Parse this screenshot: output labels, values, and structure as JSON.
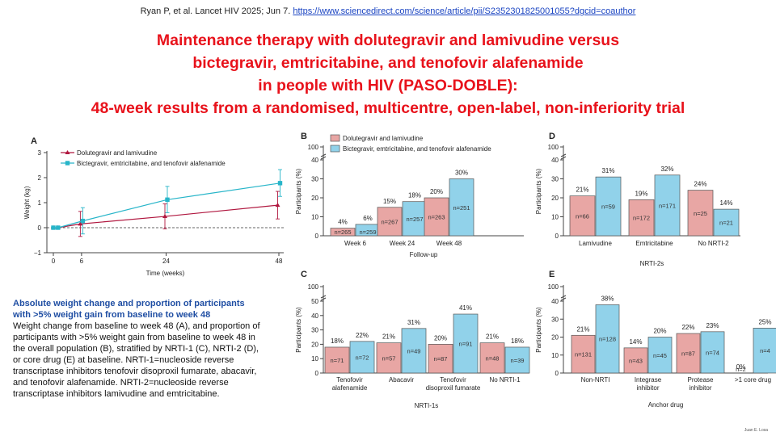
{
  "citation": {
    "prefix": "Ryan P, et al. Lancet HIV 2025; Jun 7.",
    "link": "https://www.sciencedirect.com/science/article/pii/S2352301825001055?dgcid=coauthor"
  },
  "title": {
    "line1": "Maintenance therapy with dolutegravir and lamivudine versus",
    "line2": "bictegravir, emtricitabine, and tenofovir alafenamide",
    "line3": "in people with HIV (PASO-DOBLE):",
    "line4": "48-week results from a randomised, multicentre, open-label, non-inferiority trial"
  },
  "caption": {
    "heading": "Absolute weight change and proportion of participants with >5% weight gain from baseline to week 48",
    "body": "Weight change from baseline to week 48 (A), and proportion of participants with >5% weight gain from baseline to week 48 in the overall population (B), stratified by NRTI-1 (C), NRTI-2 (D), or core drug (E) at baseline. NRTI-1=nucleoside reverse transcriptase inhibitors tenofovir disoproxil fumarate, abacavir, and tenofovir alafenamide. NRTI-2=nucleoside reverse transcriptase inhibitors lamivudine and emtricitabine."
  },
  "author": "Juan E. Losa",
  "colors": {
    "dtg": "#e8a6a4",
    "bic": "#91d2ea",
    "dtg_line": "#b0173f",
    "bic_line": "#27b5c9",
    "edge": "#555555"
  },
  "chart_data": [
    {
      "id": "A",
      "type": "line",
      "panel_label": "A",
      "xlabel": "Time (weeks)",
      "ylabel": "Weight (kg)",
      "x": [
        0,
        1,
        6,
        24,
        48
      ],
      "xticks": [
        0,
        6,
        24,
        48
      ],
      "ylim": [
        -1,
        3
      ],
      "yticks": [
        -1,
        0,
        1,
        2,
        3
      ],
      "reference_line": 0,
      "series": [
        {
          "name": "Dolutegravir and lamivudine",
          "values": [
            0,
            0,
            0.15,
            0.45,
            0.9
          ],
          "lower": [
            0,
            0,
            -0.35,
            -0.05,
            0.35
          ],
          "upper": [
            0,
            0,
            0.65,
            0.95,
            1.45
          ]
        },
        {
          "name": "Bictegravir, emtricitabine, and tenofovir alafenamide",
          "values": [
            0,
            0,
            0.27,
            1.12,
            1.78
          ],
          "lower": [
            0,
            0,
            -0.25,
            0.6,
            1.25
          ],
          "upper": [
            0,
            0,
            0.8,
            1.65,
            2.32
          ]
        }
      ]
    },
    {
      "id": "B",
      "type": "bar",
      "panel_label": "B",
      "xlabel": "Follow-up",
      "ylabel": "Participants (%)",
      "categories": [
        "Week 6",
        "Week 24",
        "Week 48"
      ],
      "ylim": [
        0,
        100
      ],
      "yticks": [
        0,
        10,
        20,
        30,
        40,
        100
      ],
      "legend": [
        "Dolutegravir and lamivudine",
        "Bictegravir, emtricitabine, and tenofovir alafenamide"
      ],
      "series": [
        {
          "name": "Dolutegravir and lamivudine",
          "values": [
            4,
            15,
            20
          ],
          "labels": [
            "4%",
            "15%",
            "20%"
          ],
          "n": [
            "n=265",
            "n=267",
            "n=263"
          ]
        },
        {
          "name": "Bictegravir, emtricitabine, and tenofovir alafenamide",
          "values": [
            6,
            18,
            30
          ],
          "labels": [
            "6%",
            "18%",
            "30%"
          ],
          "n": [
            "n=259",
            "n=257",
            "n=251"
          ]
        }
      ]
    },
    {
      "id": "C",
      "type": "bar",
      "panel_label": "C",
      "xlabel": "NRTI-1s",
      "ylabel": "Participants (%)",
      "categories": [
        "Tenofovir\nalafenamide",
        "Abacavir",
        "Tenofovir\ndisoproxil fumarate",
        "No NRTI-1"
      ],
      "ylim": [
        0,
        100
      ],
      "yticks": [
        0,
        10,
        20,
        30,
        40,
        50,
        100
      ],
      "series": [
        {
          "name": "Dolutegravir and lamivudine",
          "values": [
            18,
            21,
            20,
            21
          ],
          "labels": [
            "18%",
            "21%",
            "20%",
            "21%"
          ],
          "n": [
            "n=71",
            "n=57",
            "n=87",
            "n=48"
          ]
        },
        {
          "name": "Bictegravir, emtricitabine, and tenofovir alafenamide",
          "values": [
            22,
            31,
            41,
            18
          ],
          "labels": [
            "22%",
            "31%",
            "41%",
            "18%"
          ],
          "n": [
            "n=72",
            "n=49",
            "n=91",
            "n=39"
          ]
        }
      ]
    },
    {
      "id": "D",
      "type": "bar",
      "panel_label": "D",
      "xlabel": "NRTI-2s",
      "ylabel": "Participants (%)",
      "categories": [
        "Lamivudine",
        "Emtricitabine",
        "No NRTI-2"
      ],
      "ylim": [
        0,
        100
      ],
      "yticks": [
        0,
        10,
        20,
        30,
        40,
        100
      ],
      "series": [
        {
          "name": "Dolutegravir and lamivudine",
          "values": [
            21,
            19,
            24
          ],
          "labels": [
            "21%",
            "19%",
            "24%"
          ],
          "n": [
            "n=66",
            "n=172",
            "n=25"
          ]
        },
        {
          "name": "Bictegravir, emtricitabine, and tenofovir alafenamide",
          "values": [
            31,
            32,
            14
          ],
          "labels": [
            "31%",
            "32%",
            "14%"
          ],
          "n": [
            "n=59",
            "n=171",
            "n=21"
          ]
        }
      ]
    },
    {
      "id": "E",
      "type": "bar",
      "panel_label": "E",
      "xlabel": "Anchor drug",
      "ylabel": "Participants (%)",
      "categories": [
        "Non-NRTI",
        "Integrase\ninhibitor",
        "Protease\ninhibitor",
        ">1 core drug"
      ],
      "ylim": [
        0,
        100
      ],
      "yticks": [
        0,
        10,
        20,
        30,
        40,
        100
      ],
      "series": [
        {
          "name": "Dolutegravir and lamivudine",
          "values": [
            21,
            14,
            22,
            0
          ],
          "labels": [
            "21%",
            "14%",
            "22%",
            "0%"
          ],
          "n": [
            "n=131",
            "n=43",
            "n=87",
            "n=2"
          ]
        },
        {
          "name": "Bictegravir, emtricitabine, and tenofovir alafenamide",
          "values": [
            38,
            20,
            23,
            25
          ],
          "labels": [
            "38%",
            "20%",
            "23%",
            "25%"
          ],
          "n": [
            "n=128",
            "n=45",
            "n=74",
            "n=4"
          ]
        }
      ]
    }
  ]
}
